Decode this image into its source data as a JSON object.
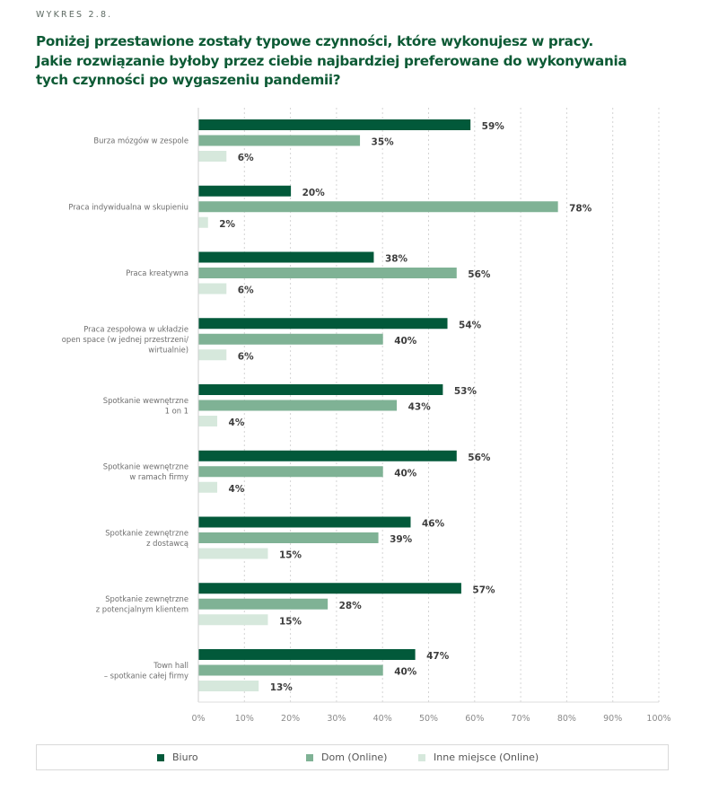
{
  "header": {
    "eyebrow": "WYKRES 2.8.",
    "title_lines": [
      "Poniżej przestawione zostały typowe czynności, które wykonujesz w pracy.",
      "Jakie rozwiązanie byłoby przez ciebie najbardziej preferowane do wykonywania",
      "tych czynności po wygaszeniu pandemii?"
    ]
  },
  "colors": {
    "biuro": "#02593a",
    "dom": "#7fb295",
    "inne": "#d6e8dc",
    "title": "#0d5a35"
  },
  "chart_data": {
    "type": "bar",
    "orientation": "horizontal",
    "title": "Poniżej przestawione zostały typowe czynności, które wykonujesz w pracy. Jakie rozwiązanie byłoby przez ciebie najbardziej preferowane do wykonywania tych czynności po wygaszeniu pandemii?",
    "xlabel": "",
    "ylabel": "",
    "xlim": [
      0,
      100
    ],
    "grid": true,
    "legend_position": "bottom",
    "categories": [
      [
        "Burza mózgów w zespole"
      ],
      [
        "Praca indywidualna w skupieniu"
      ],
      [
        "Praca kreatywna"
      ],
      [
        "Praca zespołowa w układzie",
        "open space (w jednej przestrzeni/",
        "wirtualnie)"
      ],
      [
        "Spotkanie wewnętrzne",
        "1 on 1"
      ],
      [
        "Spotkanie wewnętrzne",
        "w ramach firmy"
      ],
      [
        "Spotkanie zewnętrzne",
        "z dostawcą"
      ],
      [
        "Spotkanie zewnętrzne",
        "z potencjalnym klientem"
      ],
      [
        "Town hall",
        "– spotkanie całej firmy"
      ]
    ],
    "series": [
      {
        "name": "Biuro",
        "key": "biuro",
        "values": [
          59,
          20,
          38,
          54,
          53,
          56,
          46,
          57,
          47
        ]
      },
      {
        "name": "Dom (Online)",
        "key": "dom",
        "values": [
          35,
          78,
          56,
          40,
          43,
          40,
          39,
          28,
          40
        ]
      },
      {
        "name": "Inne miejsce (Online)",
        "key": "inne",
        "values": [
          6,
          2,
          6,
          6,
          4,
          4,
          15,
          15,
          13
        ]
      }
    ],
    "value_suffix": "%",
    "ticks": [
      "0%",
      "10%",
      "20%",
      "30%",
      "40%",
      "50%",
      "60%",
      "70%",
      "80%",
      "90%",
      "100%"
    ]
  }
}
